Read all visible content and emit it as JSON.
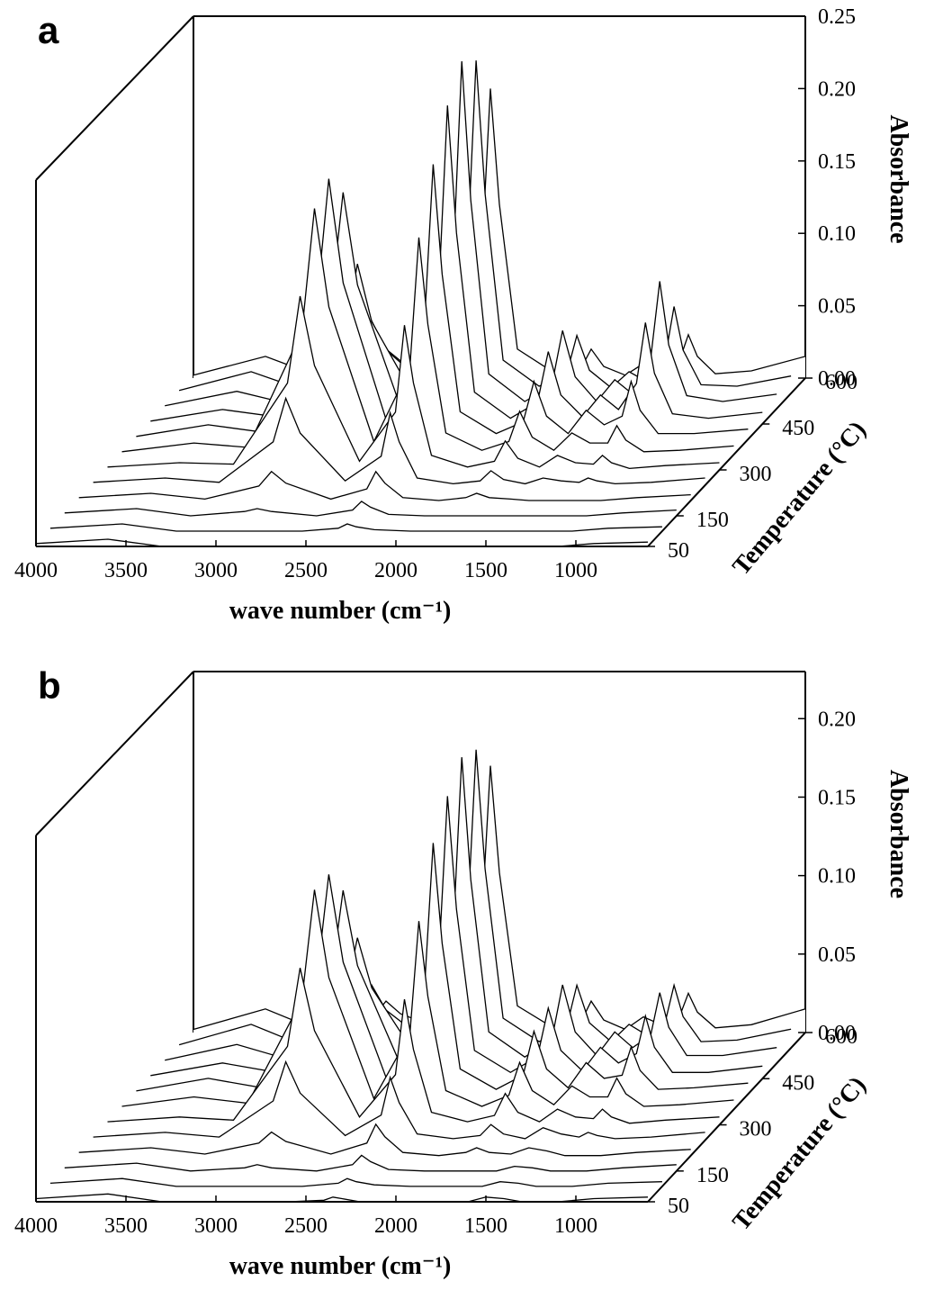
{
  "chart_data": [
    {
      "type": "waterfall",
      "panel_label": "a",
      "xlabel": "wave number (cm⁻¹)",
      "ylabel": "Absorbance",
      "zlabel": "Temperature (°C)",
      "xlim": [
        4000,
        600
      ],
      "xticks": [
        4000,
        3500,
        3000,
        2500,
        2000,
        1500,
        1000
      ],
      "ylim": [
        0,
        0.25
      ],
      "yticks": [
        {
          "value": 0,
          "label": "0.00"
        },
        0.05,
        {
          "value": 0.1,
          "label": "0.10"
        },
        0.15,
        {
          "value": 0.2,
          "label": "0.20"
        },
        0.25
      ],
      "zlim": [
        50,
        600
      ],
      "zticks": [
        50,
        150,
        300,
        450,
        600
      ],
      "x": [
        4000,
        3600,
        3300,
        3000,
        2930,
        2850,
        2600,
        2400,
        2350,
        2300,
        2200,
        2000,
        1850,
        1790,
        1720,
        1600,
        1500,
        1400,
        1300,
        1250,
        1200,
        1100,
        900,
        600
      ],
      "color": "#000000",
      "series": [
        {
          "z": 50,
          "values": [
            0.002,
            0.005,
            0,
            0,
            0,
            0,
            0,
            0,
            0,
            0,
            0,
            0,
            0,
            0,
            0,
            0,
            0,
            0,
            0,
            0,
            0,
            0,
            0.002,
            0.003
          ]
        },
        {
          "z": 100,
          "values": [
            0.002,
            0.005,
            0,
            0,
            0,
            0,
            0,
            0.002,
            0.005,
            0.003,
            0.001,
            0,
            0,
            0,
            0,
            0,
            0,
            0,
            0,
            0,
            0,
            0,
            0.002,
            0.003
          ]
        },
        {
          "z": 150,
          "values": [
            0.002,
            0.005,
            0,
            0.003,
            0.005,
            0.003,
            0,
            0.004,
            0.01,
            0.006,
            0.001,
            0,
            0,
            0,
            0,
            0,
            0,
            0,
            0,
            0,
            0,
            0,
            0.002,
            0.004
          ]
        },
        {
          "z": 200,
          "values": [
            0.002,
            0.005,
            0.001,
            0.01,
            0.02,
            0.012,
            0.001,
            0.008,
            0.02,
            0.012,
            0.002,
            0,
            0.002,
            0.005,
            0.002,
            0.001,
            0,
            0,
            0,
            0,
            0,
            0,
            0.002,
            0.004
          ]
        },
        {
          "z": 250,
          "values": [
            0.002,
            0.005,
            0.002,
            0.03,
            0.06,
            0.036,
            0.003,
            0.02,
            0.05,
            0.03,
            0.005,
            0.001,
            0.003,
            0.01,
            0.004,
            0.001,
            0.005,
            0.003,
            0.002,
            0.005,
            0.003,
            0.001,
            0.002,
            0.005
          ]
        },
        {
          "z": 300,
          "values": [
            0.002,
            0.005,
            0.004,
            0.06,
            0.12,
            0.072,
            0.006,
            0.04,
            0.1,
            0.06,
            0.01,
            0.002,
            0.006,
            0.02,
            0.008,
            0.002,
            0.01,
            0.005,
            0.004,
            0.01,
            0.005,
            0.001,
            0.003,
            0.005
          ]
        },
        {
          "z": 350,
          "values": [
            0.002,
            0.008,
            0.005,
            0.085,
            0.17,
            0.102,
            0.009,
            0.06,
            0.15,
            0.09,
            0.015,
            0.003,
            0.009,
            0.03,
            0.012,
            0.003,
            0.015,
            0.008,
            0.008,
            0.02,
            0.01,
            0.002,
            0.003,
            0.006
          ]
        },
        {
          "z": 400,
          "values": [
            0.002,
            0.01,
            0.005,
            0.09,
            0.18,
            0.108,
            0.009,
            0.076,
            0.19,
            0.114,
            0.019,
            0.004,
            0.012,
            0.04,
            0.016,
            0.004,
            0.02,
            0.01,
            0.016,
            0.04,
            0.02,
            0.004,
            0.004,
            0.007
          ]
        },
        {
          "z": 450,
          "values": [
            0.002,
            0.01,
            0.005,
            0.08,
            0.16,
            0.096,
            0.008,
            0.088,
            0.22,
            0.132,
            0.022,
            0.004,
            0.015,
            0.05,
            0.02,
            0.005,
            0.02,
            0.01,
            0.028,
            0.07,
            0.035,
            0.007,
            0.004,
            0.008
          ]
        },
        {
          "z": 500,
          "values": [
            0.002,
            0.012,
            0.003,
            0.05,
            0.1,
            0.06,
            0.005,
            0.096,
            0.24,
            0.144,
            0.024,
            0.005,
            0.016,
            0.054,
            0.022,
            0.005,
            0.02,
            0.01,
            0.035,
            0.088,
            0.044,
            0.009,
            0.005,
            0.01
          ]
        },
        {
          "z": 550,
          "values": [
            0.002,
            0.015,
            0.002,
            0.025,
            0.05,
            0.03,
            0.003,
            0.092,
            0.23,
            0.138,
            0.023,
            0.005,
            0.012,
            0.04,
            0.016,
            0.004,
            0.015,
            0.008,
            0.024,
            0.06,
            0.03,
            0.006,
            0.005,
            0.012
          ]
        },
        {
          "z": 600,
          "values": [
            0.002,
            0.015,
            0.001,
            0.01,
            0.02,
            0.012,
            0.001,
            0.08,
            0.2,
            0.12,
            0.02,
            0.004,
            0.006,
            0.02,
            0.008,
            0.002,
            0.01,
            0.005,
            0.012,
            0.03,
            0.015,
            0.003,
            0.005,
            0.015
          ]
        }
      ]
    },
    {
      "type": "waterfall",
      "panel_label": "b",
      "xlabel": "wave number (cm⁻¹)",
      "ylabel": "Absorbance",
      "zlabel": "Temperature (°C)",
      "xlim": [
        4000,
        600
      ],
      "xticks": [
        4000,
        3500,
        3000,
        2500,
        2000,
        1500,
        1000
      ],
      "ylim": [
        0,
        0.23
      ],
      "yticks": [
        {
          "value": 0,
          "label": "0.00"
        },
        0.05,
        {
          "value": 0.1,
          "label": "0.10"
        },
        0.15,
        {
          "value": 0.2,
          "label": "0.20"
        }
      ],
      "zlim": [
        50,
        600
      ],
      "zticks": [
        50,
        150,
        300,
        450,
        600
      ],
      "x": [
        4000,
        3600,
        3300,
        3000,
        2930,
        2850,
        2600,
        2400,
        2350,
        2300,
        2200,
        2000,
        1850,
        1790,
        1720,
        1600,
        1500,
        1400,
        1300,
        1250,
        1200,
        1100,
        900,
        600
      ],
      "color": "#000000",
      "series": [
        {
          "z": 50,
          "values": [
            0.002,
            0.005,
            0,
            0,
            0,
            0,
            0,
            0.001,
            0.003,
            0.002,
            0,
            0,
            0,
            0,
            0,
            0,
            0.003,
            0.002,
            0,
            0,
            0,
            0,
            0.002,
            0.003
          ]
        },
        {
          "z": 100,
          "values": [
            0.002,
            0.005,
            0,
            0,
            0,
            0,
            0,
            0.002,
            0.005,
            0.003,
            0.001,
            0,
            0,
            0,
            0,
            0,
            0.003,
            0.002,
            0,
            0,
            0,
            0,
            0.002,
            0.003
          ]
        },
        {
          "z": 150,
          "values": [
            0.002,
            0.005,
            0,
            0.002,
            0.004,
            0.002,
            0,
            0.004,
            0.01,
            0.006,
            0.001,
            0,
            0,
            0,
            0,
            0,
            0.003,
            0.002,
            0,
            0,
            0,
            0,
            0.002,
            0.004
          ]
        },
        {
          "z": 200,
          "values": [
            0.002,
            0.005,
            0.001,
            0.008,
            0.015,
            0.009,
            0.001,
            0.008,
            0.02,
            0.012,
            0.002,
            0,
            0.002,
            0.005,
            0.002,
            0.001,
            0.005,
            0.003,
            0,
            0,
            0,
            0,
            0.002,
            0.004
          ]
        },
        {
          "z": 250,
          "values": [
            0.002,
            0.005,
            0.002,
            0.025,
            0.05,
            0.03,
            0.003,
            0.016,
            0.04,
            0.024,
            0.004,
            0.001,
            0.003,
            0.01,
            0.004,
            0.001,
            0.008,
            0.004,
            0.002,
            0.005,
            0.003,
            0.001,
            0.002,
            0.005
          ]
        },
        {
          "z": 300,
          "values": [
            0.002,
            0.005,
            0.003,
            0.05,
            0.1,
            0.06,
            0.005,
            0.032,
            0.08,
            0.048,
            0.008,
            0.002,
            0.006,
            0.02,
            0.008,
            0.002,
            0.01,
            0.005,
            0.004,
            0.01,
            0.005,
            0.001,
            0.003,
            0.005
          ]
        },
        {
          "z": 350,
          "values": [
            0.002,
            0.008,
            0.004,
            0.07,
            0.14,
            0.084,
            0.007,
            0.048,
            0.12,
            0.072,
            0.012,
            0.002,
            0.009,
            0.03,
            0.012,
            0.003,
            0.015,
            0.008,
            0.008,
            0.02,
            0.01,
            0.002,
            0.003,
            0.006
          ]
        },
        {
          "z": 400,
          "values": [
            0.002,
            0.01,
            0.004,
            0.07,
            0.14,
            0.084,
            0.007,
            0.064,
            0.16,
            0.096,
            0.016,
            0.003,
            0.012,
            0.04,
            0.016,
            0.004,
            0.02,
            0.01,
            0.012,
            0.03,
            0.015,
            0.003,
            0.004,
            0.007
          ]
        },
        {
          "z": 450,
          "values": [
            0.002,
            0.01,
            0.004,
            0.06,
            0.12,
            0.072,
            0.006,
            0.072,
            0.18,
            0.108,
            0.018,
            0.004,
            0.014,
            0.045,
            0.018,
            0.005,
            0.02,
            0.01,
            0.016,
            0.04,
            0.02,
            0.004,
            0.004,
            0.008
          ]
        },
        {
          "z": 500,
          "values": [
            0.002,
            0.012,
            0.002,
            0.04,
            0.08,
            0.048,
            0.004,
            0.078,
            0.195,
            0.117,
            0.02,
            0.004,
            0.015,
            0.05,
            0.02,
            0.005,
            0.02,
            0.01,
            0.018,
            0.045,
            0.023,
            0.005,
            0.005,
            0.01
          ]
        },
        {
          "z": 550,
          "values": [
            0.002,
            0.015,
            0.001,
            0.02,
            0.04,
            0.024,
            0.002,
            0.076,
            0.19,
            0.114,
            0.019,
            0.004,
            0.012,
            0.04,
            0.016,
            0.004,
            0.015,
            0.008,
            0.016,
            0.04,
            0.02,
            0.004,
            0.005,
            0.012
          ]
        },
        {
          "z": 600,
          "values": [
            0.002,
            0.015,
            0.001,
            0.01,
            0.02,
            0.012,
            0.001,
            0.068,
            0.17,
            0.102,
            0.017,
            0.003,
            0.006,
            0.02,
            0.008,
            0.002,
            0.01,
            0.005,
            0.01,
            0.025,
            0.013,
            0.003,
            0.005,
            0.015
          ]
        }
      ]
    }
  ]
}
